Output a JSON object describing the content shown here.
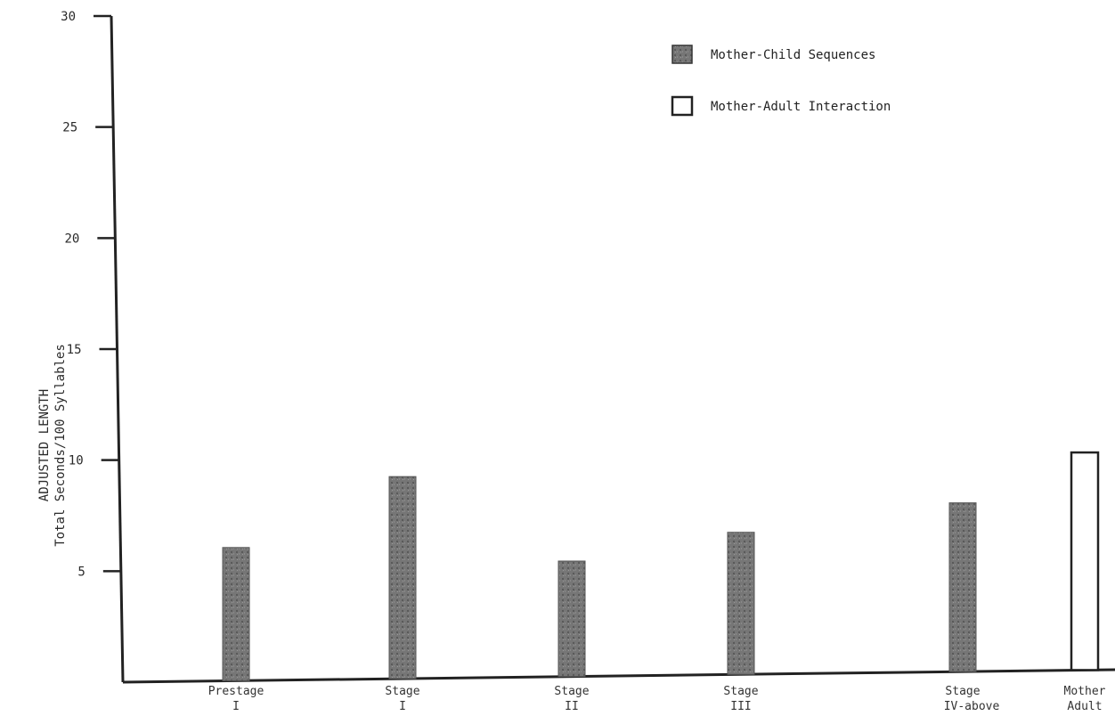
{
  "chart_data": {
    "type": "bar",
    "ylabel": "ADJUSTED LENGTH",
    "ylabel_sub": "Total Seconds/100 Syllables",
    "ylim": [
      0,
      30
    ],
    "yticks": [
      5,
      10,
      15,
      20,
      25,
      30
    ],
    "grid": false,
    "legend_position": "top-right",
    "categories": [
      {
        "line1": "Prestage",
        "line2": "I"
      },
      {
        "line1": "Stage",
        "line2": "I"
      },
      {
        "line1": "Stage",
        "line2": "II"
      },
      {
        "line1": "Stage",
        "line2": "III"
      },
      {
        "line1": "Stage",
        "line2": "IV-above"
      },
      {
        "line1": "Mother",
        "line2": "Adult"
      }
    ],
    "series": [
      {
        "name": "Mother-Child Sequences",
        "values": [
          6.0,
          9.1,
          5.2,
          6.4,
          7.6,
          null
        ],
        "style": "shaded"
      },
      {
        "name": "Mother-Adult Interaction",
        "values": [
          null,
          null,
          null,
          null,
          null,
          9.8
        ],
        "style": "outline"
      }
    ],
    "colors": {
      "shaded": "#6f6f6f",
      "outline": "#ffffff",
      "ink": "#222222"
    }
  }
}
